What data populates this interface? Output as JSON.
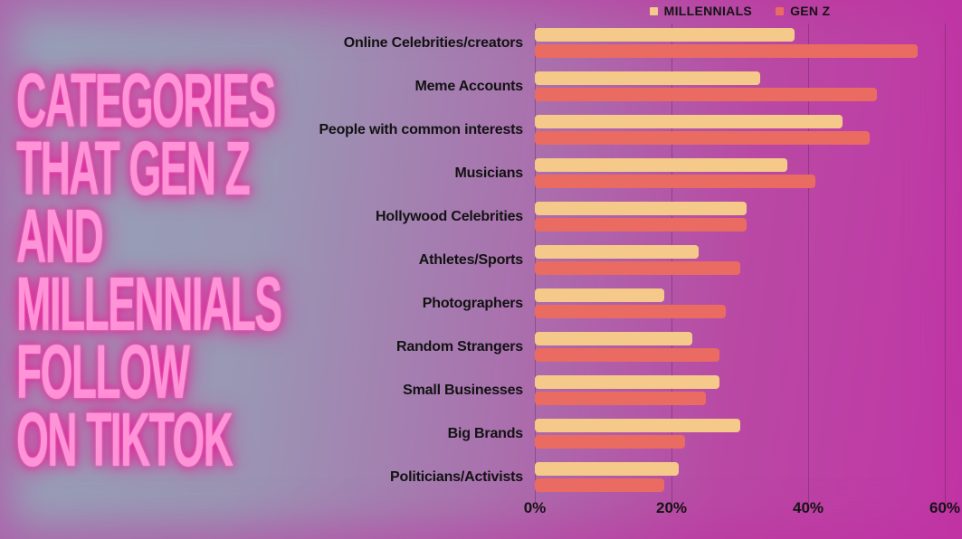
{
  "title": {
    "lines": [
      "CATEGORIES",
      "THAT GEN Z",
      "AND",
      "MILLENNIALS",
      "FOLLOW",
      "ON TIKTOK"
    ]
  },
  "colors": {
    "millennials_bar": "#f5c98a",
    "genz_bar": "#e96b62",
    "title_text": "#ff93d8",
    "title_glow": "#ec1896",
    "gridline": "rgba(75,25,75,0.35)",
    "background_left": "#96a3b9",
    "background_right": "#c136a6",
    "label_text": "#121212"
  },
  "x_axis": {
    "ticks": [
      "0%",
      "20%",
      "40%",
      "60%"
    ],
    "tick_values": [
      0,
      20,
      40,
      60
    ],
    "max": 60
  },
  "chart_data": {
    "type": "bar",
    "orientation": "horizontal",
    "title": "Categories that Gen Z and Millennials follow on TikTok",
    "categories": [
      "Online Celebrities/creators",
      "Meme Accounts",
      "People with common interests",
      "Musicians",
      "Hollywood Celebrities",
      "Athletes/Sports",
      "Photographers",
      "Random Strangers",
      "Small Businesses",
      "Big Brands",
      "Politicians/Activists"
    ],
    "series": [
      {
        "name": "MILLENNIALS",
        "values": [
          38,
          33,
          45,
          37,
          31,
          24,
          19,
          23,
          27,
          30,
          21
        ]
      },
      {
        "name": "GEN Z",
        "values": [
          56,
          50,
          49,
          41,
          31,
          30,
          28,
          27,
          25,
          22,
          19
        ]
      }
    ],
    "value_unit": "%",
    "xlim": [
      0,
      60
    ],
    "xticks": [
      0,
      20,
      40,
      60
    ],
    "grid": "vertical",
    "legend_position": "top"
  }
}
